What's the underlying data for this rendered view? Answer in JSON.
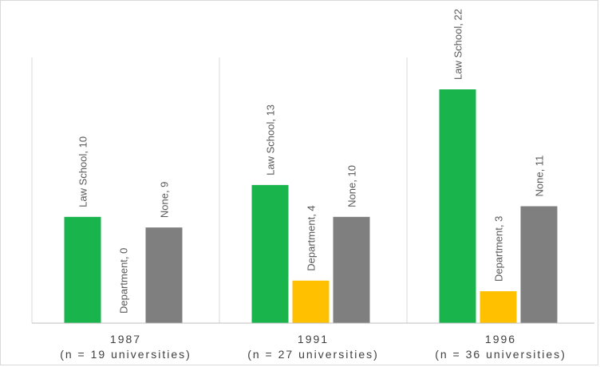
{
  "chart_data": {
    "type": "bar",
    "categories": [
      [
        "1987",
        "(n = 19 universities)"
      ],
      [
        "1991",
        "(n = 27 universities)"
      ],
      [
        "1996",
        "(n = 36 universities)"
      ]
    ],
    "series": [
      {
        "name": "Law School",
        "color": "#19b44b",
        "values": [
          10,
          13,
          22
        ]
      },
      {
        "name": "Department",
        "color": "#ffc000",
        "values": [
          0,
          4,
          3
        ]
      },
      {
        "name": "None",
        "color": "#7f7f7f",
        "values": [
          9,
          10,
          11
        ]
      }
    ],
    "data_labels": [
      [
        "Law School, 10",
        "Law School, 13",
        "Law School, 22"
      ],
      [
        "Department, 0",
        "Department, 4",
        "Department, 3"
      ],
      [
        "None, 9",
        "None, 10",
        "None, 11"
      ]
    ],
    "ylim": [
      0,
      22
    ],
    "grid": false,
    "legend": "none",
    "title": "",
    "xlabel": "",
    "ylabel": ""
  }
}
